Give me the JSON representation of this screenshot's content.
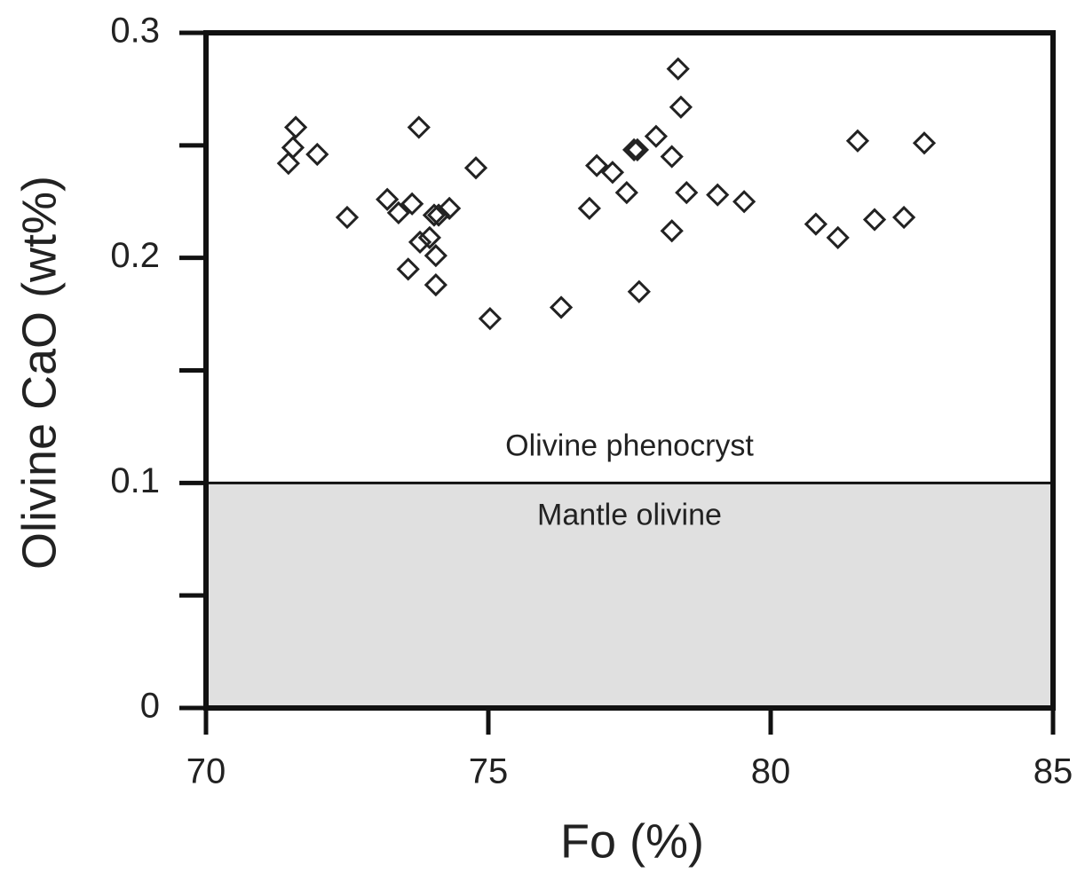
{
  "chart_data": {
    "type": "scatter",
    "x_label": "Fo (%)",
    "y_label": "Olivine CaO (wt%)",
    "xlim": [
      70,
      85
    ],
    "xticks": [
      70,
      75,
      80,
      85
    ],
    "ylim": [
      0,
      0.3
    ],
    "yticks": [
      0,
      0.1,
      0.2,
      0.3
    ],
    "yminorticks": [
      0.05,
      0.15,
      0.25
    ],
    "marker": "diamond",
    "color": "#222222",
    "band": {
      "from": 0,
      "to": 0.1,
      "color": "#e0e0e0",
      "label": "Mantle olivine"
    },
    "annotation": "Olivine phenocryst",
    "x": [
      71.46,
      71.54,
      71.59,
      71.97,
      72.5,
      73.21,
      73.41,
      73.65,
      73.77,
      73.58,
      73.79,
      73.96,
      74.04,
      74.07,
      74.12,
      74.31,
      74.07,
      74.78,
      75.03,
      76.29,
      76.79,
      76.92,
      77.2,
      77.45,
      77.58,
      77.64,
      77.67,
      77.97,
      78.25,
      78.25,
      78.36,
      78.41,
      78.51,
      79.06,
      79.53,
      80.8,
      81.19,
      81.54,
      81.84,
      82.36,
      82.72
    ],
    "values": [
      0.242,
      0.249,
      0.258,
      0.246,
      0.218,
      0.226,
      0.22,
      0.224,
      0.258,
      0.195,
      0.207,
      0.209,
      0.219,
      0.201,
      0.219,
      0.222,
      0.188,
      0.24,
      0.173,
      0.178,
      0.222,
      0.241,
      0.238,
      0.229,
      0.248,
      0.248,
      0.185,
      0.254,
      0.245,
      0.212,
      0.284,
      0.267,
      0.229,
      0.228,
      0.225,
      0.215,
      0.209,
      0.252,
      0.217,
      0.218,
      0.251
    ]
  }
}
